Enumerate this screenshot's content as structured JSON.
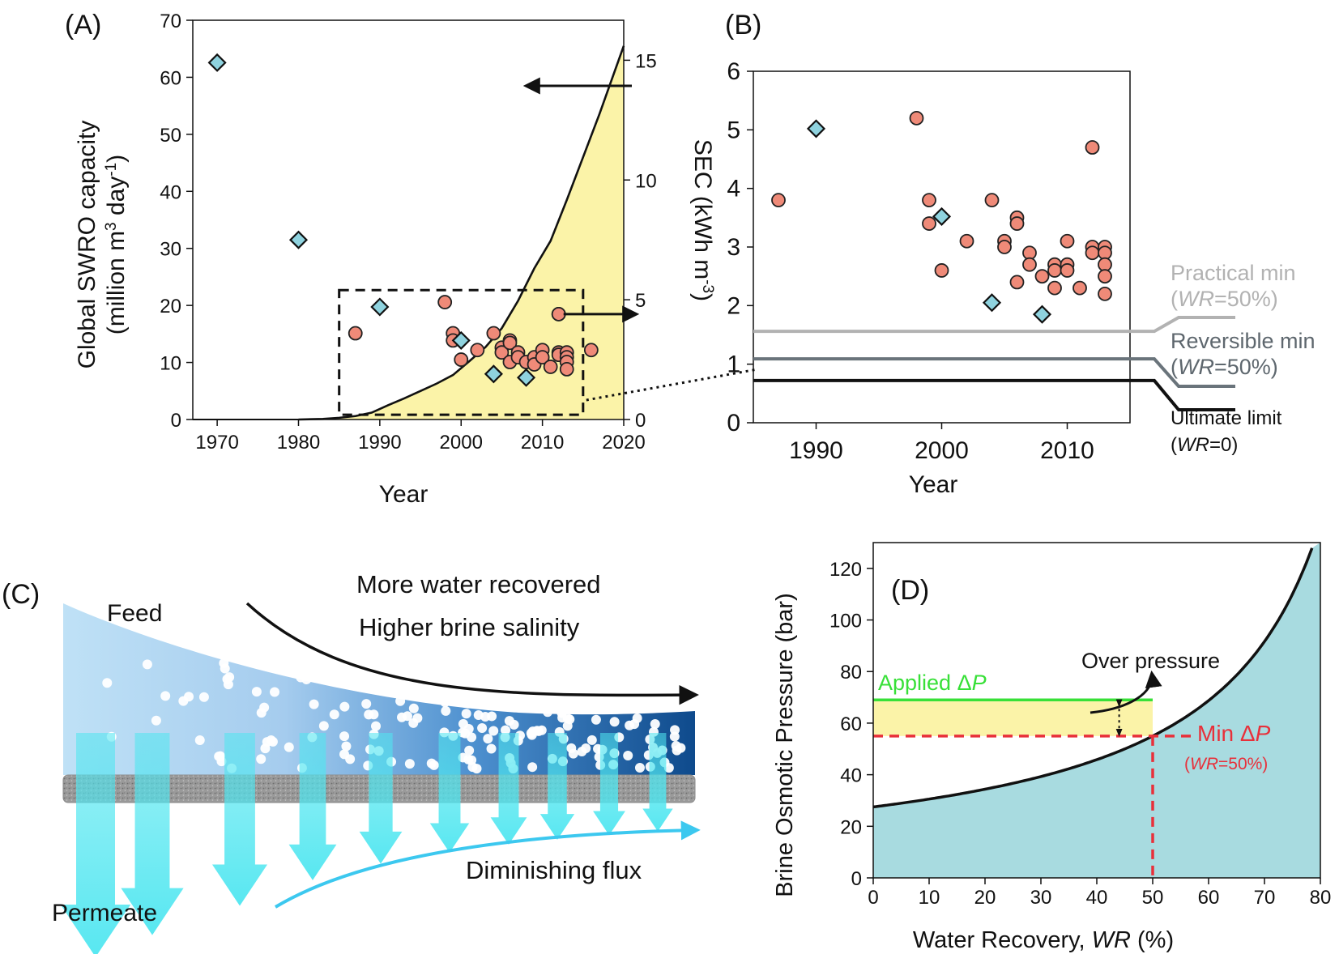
{
  "panels": {
    "A": "(A)",
    "B": "(B)",
    "C": "(C)",
    "D": "(D)"
  },
  "colors": {
    "capacity_fill": "#fbf3a8",
    "sec_circle": "#ef8a78",
    "swro_diamond": "#8fd3df",
    "practical_min": "#b2b2b2",
    "reversible_min": "#6a747b",
    "ultimate_limit": "#111111",
    "applied_dp": "#38e038",
    "min_dp": "#e8303a",
    "osmotic_fill": "#a8dbe0",
    "feed_start": "#bde0f5",
    "feed_end": "#0e4a8c",
    "permeate": "#4fe6f0"
  },
  "chart_data": [
    {
      "panel": "A",
      "type": "scatter",
      "xlabel": "Year",
      "ylabel_left": "Global SWRO capacity",
      "ylabel_left_line2": "(million m",
      "ylabel_left_sup1": "3",
      "ylabel_left_mid": " day",
      "ylabel_left_sup2": "-1",
      "ylabel_left_end": ")",
      "ylabel_right": "SEC (kWh m",
      "ylabel_right_sup": "-3",
      "ylabel_right_end": ")",
      "xlim": [
        1967,
        2020
      ],
      "ylim_left": [
        0,
        70
      ],
      "ylim_right": [
        0,
        16.67
      ],
      "x_ticks": [
        1970,
        1980,
        1990,
        2000,
        2010,
        2020
      ],
      "y_left_ticks": [
        0,
        10,
        20,
        30,
        40,
        50,
        60,
        70
      ],
      "y_right_ticks": [
        0,
        5,
        10,
        15
      ],
      "capacity_area": {
        "x": [
          1980,
          1983,
          1985,
          1987,
          1989,
          1991,
          1993,
          1995,
          1997,
          1999,
          2001,
          2003,
          2005,
          2007,
          2009,
          2011,
          2013,
          2015,
          2017,
          2019,
          2020
        ],
        "y": [
          0,
          0.1,
          0.3,
          0.6,
          1.2,
          2.5,
          3.7,
          5.0,
          6.3,
          7.8,
          10.2,
          12.7,
          16.0,
          20.8,
          26.5,
          31.3,
          38.5,
          46.0,
          53.5,
          61.5,
          65.5
        ]
      },
      "sec_diamonds": [
        [
          1970,
          14.9
        ],
        [
          1980,
          7.5
        ],
        [
          1990,
          4.7
        ],
        [
          2000,
          3.3
        ],
        [
          2004,
          1.9
        ],
        [
          2008,
          1.75
        ]
      ],
      "sec_circles": [
        [
          1987,
          3.6
        ],
        [
          1998,
          4.9
        ],
        [
          1999,
          3.6
        ],
        [
          1999,
          3.3
        ],
        [
          2000,
          2.5
        ],
        [
          2002,
          2.9
        ],
        [
          2004,
          3.6
        ],
        [
          2005,
          3.0
        ],
        [
          2005,
          2.8
        ],
        [
          2006,
          3.3
        ],
        [
          2006,
          3.2
        ],
        [
          2006,
          2.4
        ],
        [
          2007,
          2.8
        ],
        [
          2007,
          2.6
        ],
        [
          2008,
          2.4
        ],
        [
          2009,
          2.6
        ],
        [
          2009,
          2.3
        ],
        [
          2010,
          2.9
        ],
        [
          2010,
          2.6
        ],
        [
          2011,
          2.2
        ],
        [
          2012,
          4.4
        ],
        [
          2012,
          2.8
        ],
        [
          2012,
          2.7
        ],
        [
          2013,
          2.8
        ],
        [
          2013,
          2.6
        ],
        [
          2013,
          2.4
        ],
        [
          2013,
          2.1
        ],
        [
          2016,
          2.9
        ]
      ],
      "inset_box": {
        "x": [
          1985,
          2015
        ],
        "y_right": [
          0.2,
          5.4
        ]
      }
    },
    {
      "panel": "B",
      "type": "scatter",
      "xlabel": "Year",
      "xlim": [
        1985,
        2015
      ],
      "ylim": [
        0,
        6
      ],
      "x_ticks": [
        1990,
        2000,
        2010
      ],
      "y_ticks": [
        0,
        1,
        2,
        3,
        4,
        5,
        6
      ],
      "sec_circles": [
        [
          1987,
          3.8
        ],
        [
          1998,
          5.2
        ],
        [
          1999,
          3.8
        ],
        [
          1999,
          3.4
        ],
        [
          2000,
          2.6
        ],
        [
          2002,
          3.1
        ],
        [
          2004,
          3.8
        ],
        [
          2005,
          3.1
        ],
        [
          2005,
          3.0
        ],
        [
          2006,
          3.5
        ],
        [
          2006,
          3.4
        ],
        [
          2006,
          2.4
        ],
        [
          2007,
          2.9
        ],
        [
          2007,
          2.7
        ],
        [
          2008,
          2.5
        ],
        [
          2009,
          2.7
        ],
        [
          2009,
          2.6
        ],
        [
          2009,
          2.3
        ],
        [
          2010,
          3.1
        ],
        [
          2010,
          2.7
        ],
        [
          2010,
          2.6
        ],
        [
          2011,
          2.3
        ],
        [
          2012,
          4.7
        ],
        [
          2012,
          3.0
        ],
        [
          2012,
          2.9
        ],
        [
          2013,
          3.0
        ],
        [
          2013,
          2.9
        ],
        [
          2013,
          2.7
        ],
        [
          2013,
          2.5
        ],
        [
          2013,
          2.2
        ]
      ],
      "sec_diamonds": [
        [
          1990,
          5.02
        ],
        [
          2000,
          3.52
        ],
        [
          2004,
          2.05
        ],
        [
          2008,
          1.85
        ]
      ],
      "limit_lines": [
        {
          "name": "Practical min",
          "sub": "(WR=50%)",
          "value": 1.56
        },
        {
          "name": "Reversible min",
          "sub": "(WR=50%)",
          "value": 1.09
        },
        {
          "name": "Ultimate limit",
          "sub": "(WR=0)",
          "value": 0.72
        }
      ]
    },
    {
      "panel": "D",
      "type": "area",
      "xlabel_main": "Water Recovery, ",
      "xlabel_italic": "WR",
      "xlabel_end": " (%)",
      "ylabel": "Brine Osmotic Pressure (bar)",
      "xlim": [
        0,
        80
      ],
      "ylim": [
        0,
        130
      ],
      "x_ticks": [
        0,
        10,
        20,
        30,
        40,
        50,
        60,
        70,
        80
      ],
      "y_ticks": [
        0,
        20,
        40,
        60,
        80,
        100,
        120
      ],
      "curve": {
        "pi0": 27.5
      },
      "applied_dp": 69,
      "min_dp": 55,
      "wr_point": 50
    }
  ],
  "labels": {
    "practical_min": "Practical min",
    "practical_min_sub_open": "(",
    "practical_min_sub_wr": "WR",
    "practical_min_sub_rest": "=50%)",
    "reversible_min": "Reversible min",
    "reversible_min_sub_open": "(",
    "reversible_min_sub_wr": "WR",
    "reversible_min_sub_rest": "=50%)",
    "ultimate_limit": "Ultimate limit",
    "ultimate_limit_sub_open": "(",
    "ultimate_limit_sub_wr": "WR",
    "ultimate_limit_sub_rest": "=0)",
    "feed": "Feed",
    "permeate": "Permeate",
    "more_water": "More water recovered",
    "higher_brine": "Higher brine salinity",
    "diminishing_flux": "Diminishing flux",
    "applied_dp_text": "Applied Δ",
    "applied_dp_p": "P",
    "min_dp_text": "Min Δ",
    "min_dp_p": "P",
    "min_dp_sub_open": "(",
    "min_dp_sub_wr": "WR",
    "min_dp_sub_rest": "=50%)",
    "over_pressure": "Over pressure"
  }
}
